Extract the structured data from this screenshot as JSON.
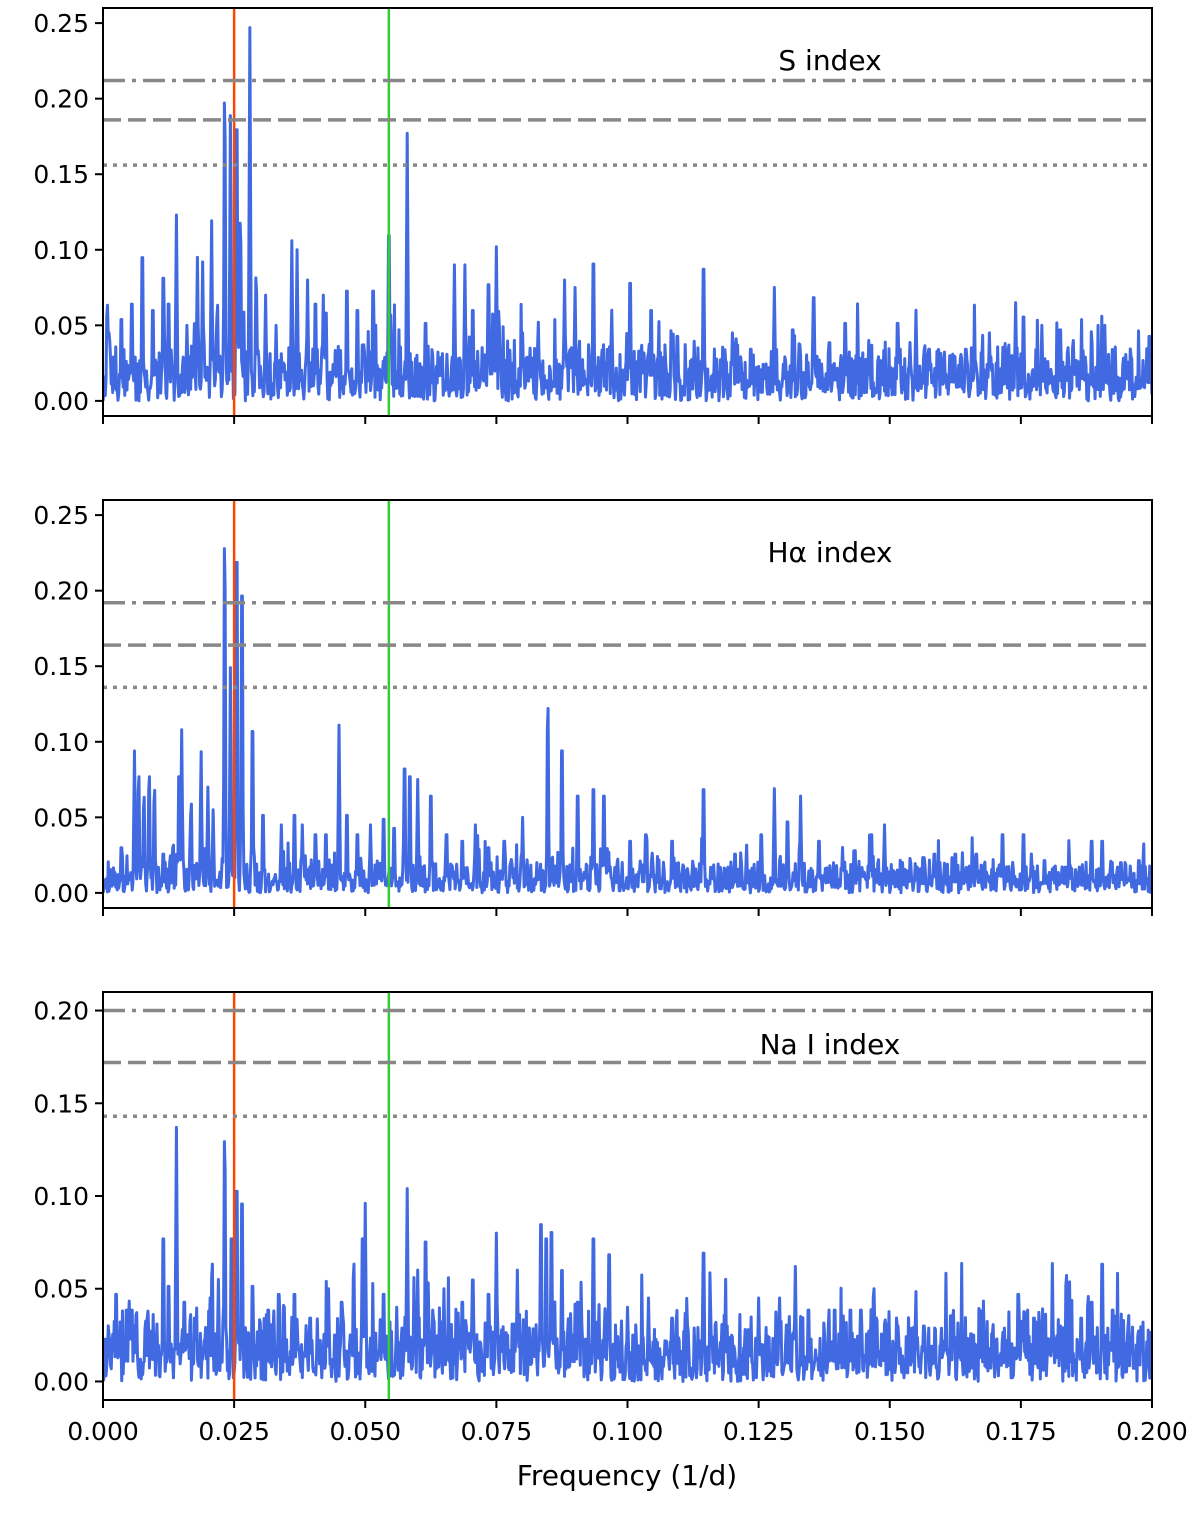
{
  "chart_data": {
    "type": "line",
    "xlabel": "Frequency (1/d)",
    "xlim": [
      0.0,
      0.2
    ],
    "x_ticks": [
      "0.000",
      "0.025",
      "0.050",
      "0.075",
      "0.100",
      "0.125",
      "0.150",
      "0.175",
      "0.200"
    ],
    "x_tick_values": [
      0.0,
      0.025,
      0.05,
      0.075,
      0.1,
      0.125,
      0.15,
      0.175,
      0.2
    ],
    "grid": false,
    "shared_x": true,
    "vertical_markers": [
      {
        "x": 0.025,
        "color": "#ff4500"
      },
      {
        "x": 0.0545,
        "color": "#32cd32"
      }
    ],
    "line_color": "#4169e1",
    "threshold_color": "#888888",
    "panels": [
      {
        "label": "S index",
        "ylim": [
          -0.01,
          0.26
        ],
        "y_ticks": [
          "0.00",
          "0.05",
          "0.10",
          "0.15",
          "0.20",
          "0.25"
        ],
        "y_tick_values": [
          0.0,
          0.05,
          0.1,
          0.15,
          0.2,
          0.25
        ],
        "thresholds": [
          {
            "style": "dashdot",
            "y": 0.212
          },
          {
            "style": "dashed",
            "y": 0.186
          },
          {
            "style": "dotted",
            "y": 0.156
          }
        ],
        "baseline": 0.03,
        "seed": 11,
        "peaks": [
          [
            0.0008,
            0.07
          ],
          [
            0.0012,
            0.05
          ],
          [
            0.0035,
            0.063
          ],
          [
            0.0055,
            0.075
          ],
          [
            0.0075,
            0.111
          ],
          [
            0.0095,
            0.07
          ],
          [
            0.0115,
            0.095
          ],
          [
            0.0125,
            0.075
          ],
          [
            0.014,
            0.123
          ],
          [
            0.016,
            0.05
          ],
          [
            0.018,
            0.095
          ],
          [
            0.019,
            0.092
          ],
          [
            0.0207,
            0.12
          ],
          [
            0.0218,
            0.07
          ],
          [
            0.0232,
            0.218
          ],
          [
            0.0243,
            0.19
          ],
          [
            0.0255,
            0.21
          ],
          [
            0.0262,
            0.13
          ],
          [
            0.028,
            0.247
          ],
          [
            0.0292,
            0.09
          ],
          [
            0.031,
            0.07
          ],
          [
            0.033,
            0.05
          ],
          [
            0.036,
            0.106
          ],
          [
            0.037,
            0.1
          ],
          [
            0.039,
            0.08
          ],
          [
            0.0405,
            0.075
          ],
          [
            0.042,
            0.07
          ],
          [
            0.0425,
            0.068
          ],
          [
            0.0465,
            0.085
          ],
          [
            0.0485,
            0.07
          ],
          [
            0.0515,
            0.085
          ],
          [
            0.0545,
            0.128
          ],
          [
            0.058,
            0.177
          ],
          [
            0.0615,
            0.06
          ],
          [
            0.067,
            0.09
          ],
          [
            0.069,
            0.09
          ],
          [
            0.0705,
            0.07
          ],
          [
            0.0735,
            0.09
          ],
          [
            0.075,
            0.102
          ],
          [
            0.08,
            0.045
          ],
          [
            0.083,
            0.052
          ],
          [
            0.088,
            0.08
          ],
          [
            0.09,
            0.075
          ],
          [
            0.0935,
            0.106
          ],
          [
            0.097,
            0.06
          ],
          [
            0.1005,
            0.091
          ],
          [
            0.1045,
            0.07
          ],
          [
            0.1095,
            0.05
          ],
          [
            0.1145,
            0.102
          ],
          [
            0.12,
            0.045
          ],
          [
            0.1235,
            0.04
          ],
          [
            0.128,
            0.075
          ],
          [
            0.1315,
            0.055
          ],
          [
            0.1355,
            0.08
          ],
          [
            0.1385,
            0.045
          ],
          [
            0.1415,
            0.06
          ],
          [
            0.146,
            0.04
          ],
          [
            0.1515,
            0.06
          ],
          [
            0.155,
            0.06
          ],
          [
            0.1575,
            0.04
          ],
          [
            0.1615,
            0.035
          ],
          [
            0.1645,
            0.04
          ],
          [
            0.169,
            0.045
          ],
          [
            0.174,
            0.065
          ],
          [
            0.1755,
            0.065
          ],
          [
            0.179,
            0.05
          ],
          [
            0.1825,
            0.055
          ],
          [
            0.185,
            0.04
          ],
          [
            0.1885,
            0.045
          ],
          [
            0.191,
            0.05
          ],
          [
            0.1955,
            0.03
          ],
          [
            0.1995,
            0.05
          ]
        ]
      },
      {
        "label": "Hα index",
        "ylim": [
          -0.01,
          0.26
        ],
        "y_ticks": [
          "0.00",
          "0.05",
          "0.10",
          "0.15",
          "0.20",
          "0.25"
        ],
        "y_tick_values": [
          0.0,
          0.05,
          0.1,
          0.15,
          0.2,
          0.25
        ],
        "thresholds": [
          {
            "style": "dashdot",
            "y": 0.192
          },
          {
            "style": "dashed",
            "y": 0.164
          },
          {
            "style": "dotted",
            "y": 0.136
          }
        ],
        "baseline": 0.018,
        "seed": 23,
        "peaks": [
          [
            0.0005,
            0.01
          ],
          [
            0.0015,
            0.018
          ],
          [
            0.0035,
            0.035
          ],
          [
            0.006,
            0.094
          ],
          [
            0.0068,
            0.085
          ],
          [
            0.0078,
            0.07
          ],
          [
            0.0088,
            0.085
          ],
          [
            0.0098,
            0.075
          ],
          [
            0.0115,
            0.03
          ],
          [
            0.0133,
            0.03
          ],
          [
            0.0145,
            0.09
          ],
          [
            0.015,
            0.108
          ],
          [
            0.0168,
            0.065
          ],
          [
            0.0187,
            0.094
          ],
          [
            0.02,
            0.07
          ],
          [
            0.021,
            0.055
          ],
          [
            0.0232,
            0.252
          ],
          [
            0.0243,
            0.15
          ],
          [
            0.0255,
            0.256
          ],
          [
            0.0265,
            0.23
          ],
          [
            0.0285,
            0.125
          ],
          [
            0.0305,
            0.06
          ],
          [
            0.034,
            0.045
          ],
          [
            0.0365,
            0.06
          ],
          [
            0.038,
            0.045
          ],
          [
            0.0405,
            0.045
          ],
          [
            0.0425,
            0.045
          ],
          [
            0.045,
            0.111
          ],
          [
            0.0465,
            0.06
          ],
          [
            0.0485,
            0.045
          ],
          [
            0.051,
            0.045
          ],
          [
            0.0535,
            0.057
          ],
          [
            0.0555,
            0.05
          ],
          [
            0.0575,
            0.096
          ],
          [
            0.0585,
            0.09
          ],
          [
            0.06,
            0.075
          ],
          [
            0.0625,
            0.075
          ],
          [
            0.0655,
            0.045
          ],
          [
            0.0685,
            0.04
          ],
          [
            0.071,
            0.045
          ],
          [
            0.0735,
            0.035
          ],
          [
            0.0765,
            0.04
          ],
          [
            0.08,
            0.05
          ],
          [
            0.0848,
            0.135
          ],
          [
            0.0875,
            0.11
          ],
          [
            0.0905,
            0.075
          ],
          [
            0.0935,
            0.08
          ],
          [
            0.0955,
            0.075
          ],
          [
            0.1005,
            0.04
          ],
          [
            0.1035,
            0.045
          ],
          [
            0.1085,
            0.04
          ],
          [
            0.1145,
            0.08
          ],
          [
            0.1205,
            0.03
          ],
          [
            0.1255,
            0.045
          ],
          [
            0.128,
            0.069
          ],
          [
            0.1305,
            0.055
          ],
          [
            0.133,
            0.064
          ],
          [
            0.1365,
            0.04
          ],
          [
            0.141,
            0.03
          ],
          [
            0.1465,
            0.045
          ],
          [
            0.149,
            0.045
          ],
          [
            0.154,
            0.02
          ],
          [
            0.1585,
            0.03
          ],
          [
            0.1625,
            0.03
          ],
          [
            0.1665,
            0.03
          ],
          [
            0.1715,
            0.045
          ],
          [
            0.1755,
            0.045
          ],
          [
            0.1795,
            0.025
          ],
          [
            0.1835,
            0.02
          ],
          [
            0.1885,
            0.04
          ],
          [
            0.1905,
            0.04
          ],
          [
            0.194,
            0.02
          ],
          [
            0.1975,
            0.025
          ]
        ]
      },
      {
        "label": "Na I index",
        "ylim": [
          -0.01,
          0.21
        ],
        "y_ticks": [
          "0.00",
          "0.05",
          "0.10",
          "0.15",
          "0.20"
        ],
        "y_tick_values": [
          0.0,
          0.05,
          0.1,
          0.15,
          0.2
        ],
        "thresholds": [
          {
            "style": "dashdot",
            "y": 0.2
          },
          {
            "style": "dashed",
            "y": 0.172
          },
          {
            "style": "dotted",
            "y": 0.143
          }
        ],
        "baseline": 0.03,
        "seed": 37,
        "peaks": [
          [
            0.001,
            0.03
          ],
          [
            0.0025,
            0.055
          ],
          [
            0.0045,
            0.045
          ],
          [
            0.0055,
            0.045
          ],
          [
            0.0085,
            0.04
          ],
          [
            0.0115,
            0.09
          ],
          [
            0.0125,
            0.06
          ],
          [
            0.014,
            0.137
          ],
          [
            0.0155,
            0.05
          ],
          [
            0.0175,
            0.04
          ],
          [
            0.0208,
            0.07
          ],
          [
            0.022,
            0.055
          ],
          [
            0.0232,
            0.143
          ],
          [
            0.0245,
            0.09
          ],
          [
            0.0255,
            0.12
          ],
          [
            0.0265,
            0.112
          ],
          [
            0.0285,
            0.06
          ],
          [
            0.0315,
            0.045
          ],
          [
            0.0335,
            0.055
          ],
          [
            0.0365,
            0.055
          ],
          [
            0.0395,
            0.04
          ],
          [
            0.043,
            0.05
          ],
          [
            0.0455,
            0.05
          ],
          [
            0.0478,
            0.07
          ],
          [
            0.0495,
            0.09
          ],
          [
            0.05,
            0.096
          ],
          [
            0.0535,
            0.055
          ],
          [
            0.056,
            0.04
          ],
          [
            0.058,
            0.104
          ],
          [
            0.06,
            0.06
          ],
          [
            0.0615,
            0.088
          ],
          [
            0.065,
            0.05
          ],
          [
            0.0685,
            0.05
          ],
          [
            0.0705,
            0.064
          ],
          [
            0.0735,
            0.055
          ],
          [
            0.075,
            0.08
          ],
          [
            0.079,
            0.06
          ],
          [
            0.0835,
            0.099
          ],
          [
            0.0845,
            0.09
          ],
          [
            0.0855,
            0.094
          ],
          [
            0.0875,
            0.07
          ],
          [
            0.0905,
            0.05
          ],
          [
            0.0935,
            0.09
          ],
          [
            0.0965,
            0.08
          ],
          [
            0.1,
            0.04
          ],
          [
            0.104,
            0.045
          ],
          [
            0.1085,
            0.04
          ],
          [
            0.1145,
            0.081
          ],
          [
            0.119,
            0.03
          ],
          [
            0.125,
            0.045
          ],
          [
            0.129,
            0.045
          ],
          [
            0.132,
            0.062
          ],
          [
            0.1345,
            0.045
          ],
          [
            0.1395,
            0.045
          ],
          [
            0.1425,
            0.045
          ],
          [
            0.1445,
            0.045
          ],
          [
            0.147,
            0.05
          ],
          [
            0.1515,
            0.035
          ],
          [
            0.1565,
            0.035
          ],
          [
            0.1605,
            0.02
          ],
          [
            0.1655,
            0.03
          ],
          [
            0.1695,
            0.03
          ],
          [
            0.1745,
            0.055
          ],
          [
            0.1775,
            0.04
          ],
          [
            0.1825,
            0.035
          ],
          [
            0.1865,
            0.04
          ],
          [
            0.1885,
            0.05
          ],
          [
            0.1905,
            0.074
          ],
          [
            0.1925,
            0.045
          ],
          [
            0.1955,
            0.035
          ],
          [
            0.198,
            0.02
          ]
        ]
      }
    ]
  }
}
